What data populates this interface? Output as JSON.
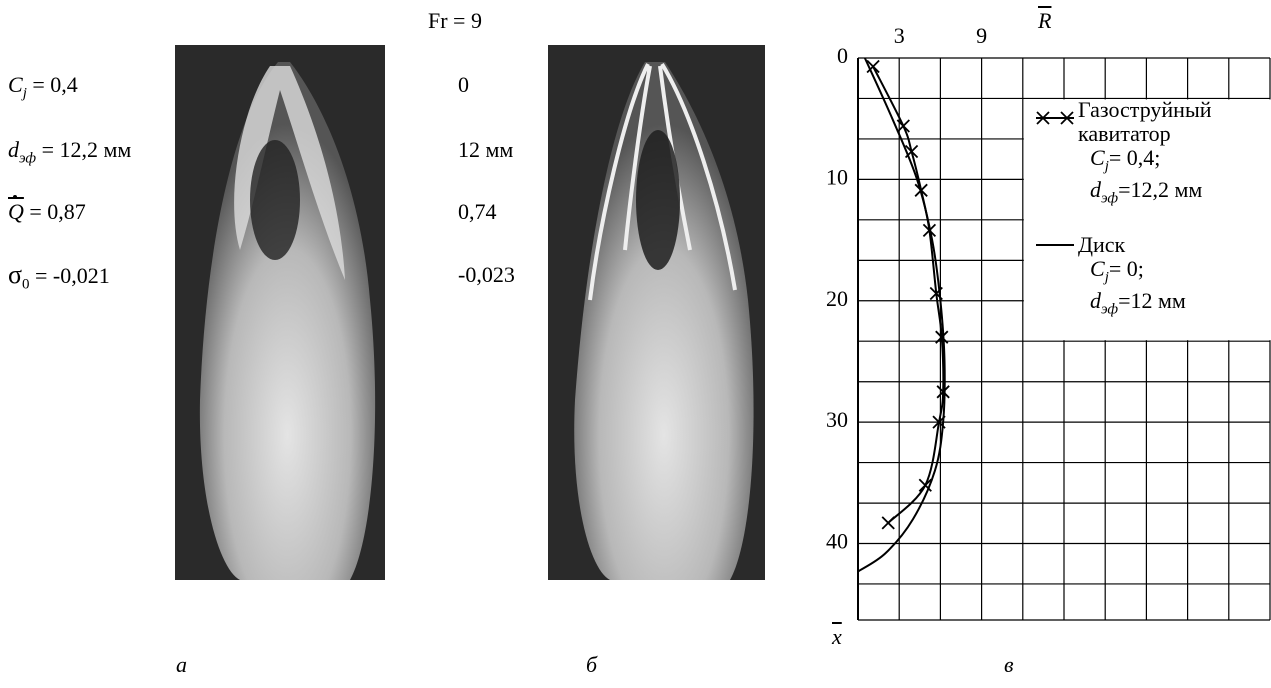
{
  "title": "Fr = 9",
  "params_a": [
    {
      "symbol": "C",
      "sub": "j",
      "rest": "= 0,4"
    },
    {
      "symbol": "d",
      "sub": "эф",
      "rest": "= 12,2 мм"
    },
    {
      "symbol": "Q",
      "sub": "",
      "rest": "= 0,87"
    },
    {
      "symbol": "σ",
      "sub": "0",
      "rest": "= -0,021"
    }
  ],
  "params_b": [
    "0",
    "12 мм",
    "0,74",
    "-0,023"
  ],
  "captions": [
    "а",
    "б",
    "в"
  ],
  "chart_data": {
    "type": "line",
    "xlabel": "R",
    "ylabel": "x",
    "xlim": [
      0,
      30
    ],
    "ylim": [
      0,
      46.3
    ],
    "xticks": [
      3,
      9
    ],
    "yticks": [
      0,
      10,
      20,
      30,
      40
    ],
    "xgrid": [
      0,
      3,
      6,
      9,
      12,
      15,
      18,
      21,
      24,
      27,
      30
    ],
    "ygrid": [
      0,
      3.33,
      6.67,
      10,
      13.33,
      16.67,
      20,
      23.33,
      26.67,
      30,
      33.33,
      36.67,
      40,
      43.33,
      46.3
    ],
    "series": [
      {
        "name": "Газоструйный кавитатор",
        "color": "#000000",
        "marker": "x",
        "notes": [
          {
            "symbol": "C",
            "sub": "j",
            "rest": "= 0,4;"
          },
          {
            "symbol": "d",
            "sub": "эф",
            "rest": "=12,2 мм"
          }
        ],
        "x": [
          1.1,
          3.3,
          3.9,
          4.6,
          5.2,
          5.7,
          6.1,
          6.2,
          5.9,
          4.9,
          2.2
        ],
        "values": [
          0.7,
          5.6,
          7.7,
          10.9,
          14.2,
          19.4,
          23,
          27.5,
          30,
          35.2,
          38.3
        ]
      },
      {
        "name": "Диск",
        "color": "#000000",
        "marker": null,
        "notes": [
          {
            "symbol": "C",
            "sub": "j",
            "rest": "= 0;"
          },
          {
            "symbol": "d",
            "sub": "эф",
            "rest": "=12 мм"
          }
        ],
        "x": [
          0.5,
          2.5,
          4.3,
          5.4,
          6.0,
          6.3,
          6.2,
          5.6,
          4.0,
          2.0,
          0
        ],
        "values": [
          0,
          5,
          10,
          15,
          20,
          25,
          30,
          34,
          38,
          40.8,
          42.3
        ]
      }
    ]
  }
}
